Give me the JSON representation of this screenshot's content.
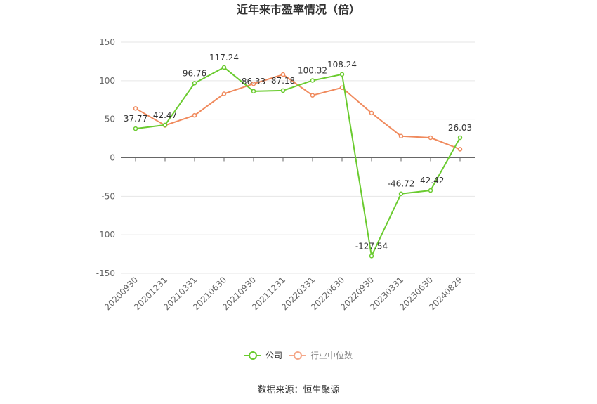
{
  "chart_data": {
    "type": "line",
    "title": "近年来市盈率情况（倍）",
    "categories": [
      "20200930",
      "20201231",
      "20210331",
      "20210630",
      "20210930",
      "20211231",
      "20220331",
      "20220630",
      "20220930",
      "20230331",
      "20230630",
      "20240829"
    ],
    "series": [
      {
        "name": "公司",
        "color": "#6acb2f",
        "values": [
          37.77,
          42.47,
          96.76,
          117.24,
          86.33,
          87.18,
          100.32,
          108.24,
          -127.54,
          -46.72,
          -42.42,
          26.03
        ],
        "labels": [
          "37.77",
          "42.47",
          "96.76",
          "117.24",
          "86.33",
          "87.18",
          "100.32",
          "108.24",
          "-127.54",
          "-46.72",
          "-42.42",
          "26.03"
        ]
      },
      {
        "name": "行业中位数",
        "color": "#f08a5d",
        "values": [
          64,
          42,
          55,
          83,
          96,
          108,
          81,
          91,
          58,
          28,
          26,
          11
        ]
      }
    ],
    "ylim": [
      -150,
      150
    ],
    "yticks": [
      "150",
      "100",
      "50",
      "0",
      "-50",
      "-100",
      "-150"
    ],
    "ytick_values": [
      150,
      100,
      50,
      0,
      -50,
      -100,
      -150
    ],
    "grid": true,
    "legend_position": "bottom"
  },
  "source_text": "数据来源：恒生聚源"
}
